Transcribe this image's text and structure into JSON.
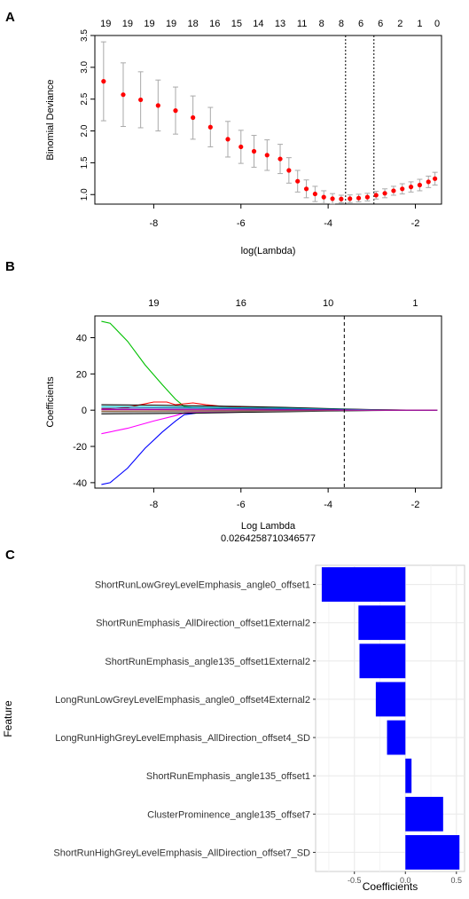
{
  "panel_labels": [
    "A",
    "B",
    "C"
  ],
  "chart_data": [
    {
      "type": "scatter",
      "panel": "A",
      "xlabel": "log(Lambda)",
      "ylabel": "Binomial Deviance",
      "xlim": [
        -9.35,
        -1.4
      ],
      "ylim": [
        0.85,
        3.5
      ],
      "xticks": [
        -8,
        -6,
        -4,
        -2
      ],
      "yticks": [
        1.0,
        1.5,
        2.0,
        2.5,
        3.0,
        3.5
      ],
      "ytick_labels": [
        "1.0",
        "1.5",
        "2.0",
        "2.5",
        "3.0",
        "3.5"
      ],
      "top_axis_labels": [
        "19",
        "19",
        "19",
        "19",
        "18",
        "16",
        "15",
        "14",
        "13",
        "11",
        "8",
        "8",
        "6",
        "6",
        "2",
        "1",
        "0"
      ],
      "top_axis_x": [
        -9.1,
        -8.6,
        -8.1,
        -7.6,
        -7.1,
        -6.6,
        -6.1,
        -5.6,
        -5.1,
        -4.6,
        -4.15,
        -3.7,
        -3.25,
        -2.8,
        -2.35,
        -1.9,
        -1.5
      ],
      "vlines": [
        -3.6,
        -2.95
      ],
      "series": [
        {
          "x": [
            -9.15,
            -8.7,
            -8.3,
            -7.9,
            -7.5,
            -7.1,
            -6.7,
            -6.3,
            -6.0,
            -5.7,
            -5.4,
            -5.1,
            -4.9,
            -4.7,
            -4.5,
            -4.3,
            -4.1,
            -3.9,
            -3.7,
            -3.5,
            -3.3,
            -3.1,
            -2.9,
            -2.7,
            -2.5,
            -2.3,
            -2.1,
            -1.9,
            -1.7,
            -1.55
          ],
          "y": [
            2.78,
            2.57,
            2.49,
            2.4,
            2.32,
            2.21,
            2.06,
            1.87,
            1.75,
            1.68,
            1.62,
            1.56,
            1.38,
            1.21,
            1.09,
            1.01,
            0.96,
            0.935,
            0.93,
            0.935,
            0.945,
            0.96,
            0.99,
            1.02,
            1.06,
            1.09,
            1.12,
            1.15,
            1.2,
            1.25
          ],
          "err": [
            0.62,
            0.5,
            0.44,
            0.4,
            0.37,
            0.34,
            0.31,
            0.28,
            0.26,
            0.25,
            0.24,
            0.23,
            0.2,
            0.17,
            0.14,
            0.12,
            0.1,
            0.08,
            0.06,
            0.06,
            0.06,
            0.06,
            0.06,
            0.07,
            0.07,
            0.08,
            0.08,
            0.09,
            0.09,
            0.1
          ],
          "color": "#ff0000",
          "error_color": "#a9a9a9"
        }
      ]
    },
    {
      "type": "line",
      "panel": "B",
      "xlabel": "Log Lambda",
      "annotation": "0.0264258710346577",
      "ylabel": "Coefficients",
      "xlim": [
        -9.35,
        -1.4
      ],
      "ylim": [
        -43,
        52
      ],
      "xticks": [
        -8,
        -6,
        -4,
        -2
      ],
      "yticks": [
        -40,
        -20,
        0,
        20,
        40
      ],
      "top_axis_labels": [
        "19",
        "16",
        "10",
        "1"
      ],
      "top_axis_x": [
        -8,
        -6,
        -4,
        -2
      ],
      "vline": -3.63,
      "series": [
        {
          "color": "#00c000",
          "x": [
            -9.2,
            -9.0,
            -8.6,
            -8.2,
            -7.8,
            -7.5,
            -7.3,
            -7.0,
            -6.0,
            -5.0,
            -4.0,
            -3.0,
            -2.0,
            -1.5
          ],
          "y": [
            49,
            48,
            38,
            25,
            14,
            6,
            2,
            1.2,
            0.8,
            0.5,
            0.2,
            0,
            0,
            0
          ]
        },
        {
          "color": "#0000ff",
          "x": [
            -9.2,
            -9.0,
            -8.6,
            -8.2,
            -7.8,
            -7.5,
            -7.3,
            -7.0,
            -6.0,
            -5.0,
            -4.0,
            -3.0,
            -2.0,
            -1.5
          ],
          "y": [
            -41,
            -40,
            -32,
            -21,
            -12,
            -6,
            -2.5,
            -1.5,
            -1,
            -0.6,
            -0.2,
            0,
            0,
            0
          ]
        },
        {
          "color": "#ff00ff",
          "x": [
            -9.2,
            -8.6,
            -8.0,
            -7.5,
            -7.3,
            -7.0,
            -6.0,
            -5.0,
            -4.0,
            -3.0,
            -2.0,
            -1.5
          ],
          "y": [
            -13,
            -10,
            -6,
            -3,
            -1.5,
            -1.2,
            -0.9,
            -0.6,
            -0.3,
            0,
            0,
            0
          ]
        },
        {
          "color": "#ff0000",
          "x": [
            -9.2,
            -8.6,
            -8.3,
            -8.0,
            -7.7,
            -7.5,
            -7.3,
            -7.1,
            -6.8,
            -6.4,
            -6.0,
            -5.0,
            -4.0,
            -3.0,
            -2.0,
            -1.5
          ],
          "y": [
            0.5,
            1.5,
            3,
            4.5,
            4.5,
            3,
            3.5,
            4,
            3,
            2,
            1.5,
            1,
            0.5,
            0.2,
            0,
            0
          ]
        },
        {
          "color": "#000000",
          "x": [
            -9.2,
            -8.0,
            -7.0,
            -6.0,
            -5.0,
            -4.0,
            -3.0,
            -2.0,
            -1.5
          ],
          "y": [
            3,
            2.8,
            2.4,
            2.0,
            1.5,
            0.9,
            0.3,
            0,
            0
          ]
        },
        {
          "color": "#000000",
          "x": [
            -9.2,
            -8.0,
            -7.0,
            -6.0,
            -5.0,
            -4.0,
            -3.0,
            -2.0,
            -1.5
          ],
          "y": [
            -2,
            -1.8,
            -1.6,
            -1.2,
            -0.9,
            -0.5,
            -0.2,
            0,
            0
          ]
        },
        {
          "color": "#00cccc",
          "x": [
            -9.2,
            -8.0,
            -7.0,
            -6.0,
            -5.0,
            -4.0,
            -3.0,
            -2.0,
            -1.5
          ],
          "y": [
            2,
            1.8,
            1.6,
            1.3,
            1.0,
            0.6,
            0.2,
            0,
            0
          ]
        },
        {
          "color": "#888888",
          "x": [
            -9.2,
            -8.0,
            -7.0,
            -6.0,
            -5.0,
            -4.0,
            -3.0,
            -2.0,
            -1.5
          ],
          "y": [
            -1,
            -1,
            -0.9,
            -0.7,
            -0.5,
            -0.3,
            -0.1,
            0,
            0
          ]
        },
        {
          "color": "#3333aa",
          "x": [
            -9.2,
            -8.0,
            -7.0,
            -6.0,
            -5.0,
            -4.0,
            -3.0,
            -2.0,
            -1.5
          ],
          "y": [
            1,
            1.1,
            1.0,
            0.8,
            0.6,
            0.4,
            0.1,
            0,
            0
          ]
        },
        {
          "color": "#996633",
          "x": [
            -9.2,
            -8.0,
            -7.0,
            -6.0,
            -5.0,
            -4.0,
            -3.0,
            -2.0,
            -1.5
          ],
          "y": [
            -0.5,
            -0.4,
            -0.35,
            -0.3,
            -0.2,
            -0.1,
            0,
            0,
            0
          ]
        },
        {
          "color": "#aa00aa",
          "x": [
            -9.2,
            -8.0,
            -7.0,
            -6.0,
            -5.0,
            -4.0,
            -3.0,
            -2.0,
            -1.5
          ],
          "y": [
            0.3,
            0.3,
            0.25,
            0.2,
            0.15,
            0.1,
            0,
            0,
            0
          ]
        }
      ]
    },
    {
      "type": "bar",
      "orientation": "horizontal",
      "panel": "C",
      "xlabel": "Coefficients",
      "ylabel": "Feature",
      "xlim": [
        -0.88,
        0.58
      ],
      "xticks": [
        -0.5,
        0.0,
        0.5
      ],
      "xtick_labels": [
        "-0.5",
        "0.0",
        "0.5"
      ],
      "categories": [
        "ShortRunLowGreyLevelEmphasis_angle0_offset1",
        "ShortRunEmphasis_AllDirection_offset1External2",
        "ShortRunEmphasis_angle135_offset1External2",
        "LongRunLowGreyLevelEmphasis_angle0_offset4External2",
        "LongRunHighGreyLevelEmphasis_AllDirection_offset4_SD",
        "ShortRunEmphasis_angle135_offset1",
        "ClusterProminence_angle135_offset7",
        "ShortRunHighGreyLevelEmphasis_AllDirection_offset7_SD"
      ],
      "values": [
        -0.82,
        -0.46,
        -0.45,
        -0.29,
        -0.18,
        0.06,
        0.37,
        0.53
      ],
      "color": "#0000ff",
      "panel_background": "#ffffff",
      "grid_color": "#ebebeb"
    }
  ]
}
